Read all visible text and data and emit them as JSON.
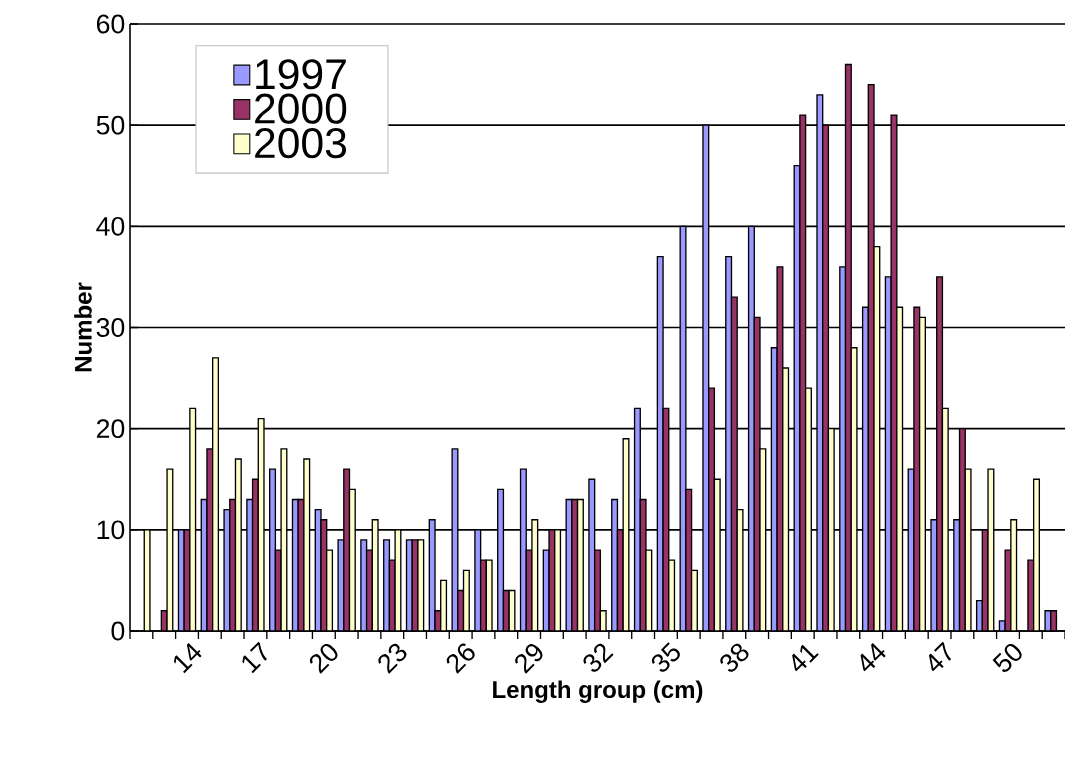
{
  "chart_data": {
    "type": "bar",
    "xlabel": "Length group (cm)",
    "ylabel": "Number",
    "categories": [
      null,
      null,
      "14",
      null,
      null,
      "17",
      null,
      null,
      "20",
      null,
      null,
      "23",
      null,
      null,
      "26",
      null,
      null,
      "29",
      null,
      null,
      "32",
      null,
      null,
      "35",
      null,
      null,
      "38",
      null,
      null,
      "41",
      null,
      null,
      "44",
      null,
      null,
      "47",
      null,
      null,
      "50",
      null,
      null
    ],
    "series": [
      {
        "name": "1997",
        "color": "#9999ff",
        "values": [
          0,
          0,
          10,
          13,
          12,
          13,
          16,
          13,
          12,
          9,
          9,
          9,
          9,
          11,
          18,
          10,
          14,
          16,
          8,
          13,
          15,
          13,
          22,
          37,
          40,
          50,
          37,
          40,
          28,
          46,
          53,
          36,
          32,
          35,
          16,
          11,
          11,
          3,
          1,
          0,
          2
        ]
      },
      {
        "name": "2000",
        "color": "#993366",
        "values": [
          0,
          2,
          10,
          18,
          13,
          15,
          8,
          13,
          11,
          16,
          8,
          7,
          9,
          2,
          4,
          7,
          4,
          8,
          10,
          13,
          8,
          10,
          13,
          22,
          14,
          24,
          33,
          31,
          36,
          51,
          50,
          56,
          54,
          51,
          32,
          35,
          20,
          10,
          8,
          7,
          2
        ]
      },
      {
        "name": "2003",
        "color": "#ffffcc",
        "values": [
          10,
          16,
          22,
          27,
          17,
          21,
          18,
          17,
          8,
          14,
          11,
          10,
          9,
          5,
          6,
          7,
          4,
          11,
          10,
          13,
          2,
          19,
          8,
          7,
          6,
          15,
          12,
          18,
          26,
          24,
          20,
          28,
          38,
          32,
          31,
          22,
          16,
          16,
          11,
          15,
          null
        ]
      }
    ],
    "ylim": [
      0,
      60
    ],
    "yticks": [
      0,
      10,
      20,
      30,
      40,
      50,
      60
    ],
    "grid": "y",
    "legend": "top left"
  }
}
